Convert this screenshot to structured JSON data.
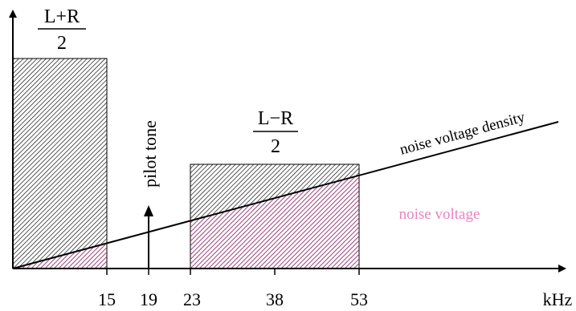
{
  "diagram": {
    "lr_sum": {
      "numerator": "L+R",
      "denominator": "2"
    },
    "lr_diff": {
      "numerator": "L−R",
      "denominator": "2"
    },
    "pilot_label": "pilot tone",
    "noise_density_label": "noise voltage density",
    "noise_voltage_label": "noise voltage",
    "x_unit": "kHz",
    "ticks": [
      "15",
      "19",
      "23",
      "38",
      "53"
    ],
    "colors": {
      "black_hatch": "#000000",
      "noise_hatch": "#c2388f",
      "noise_label": "#e882bf"
    }
  }
}
